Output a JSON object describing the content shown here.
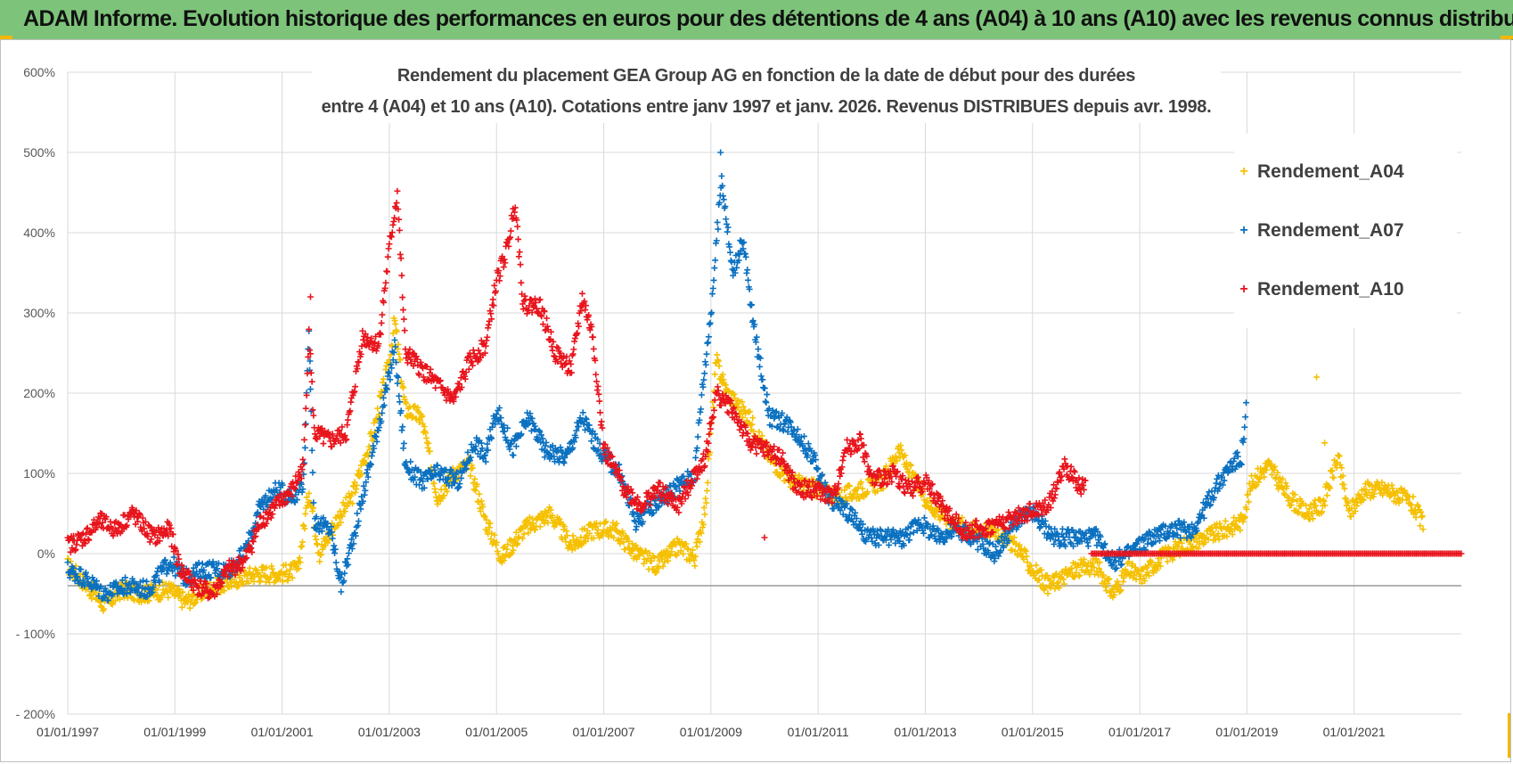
{
  "header": {
    "title": "ADAM Informe. Evolution historique des performances en euros pour des détentions de 4 ans (A04) à 10 ans (A10) avec les revenus connus distribués"
  },
  "chart_data": {
    "type": "scatter",
    "title_line1": "Rendement du placement GEA Group AG en fonction de la date de début pour des durées",
    "title_line2": "entre 4 (A04) et 10 ans (A10).  Cotations entre janv 1997 et janv. 2026. Revenus  DISTRIBUES depuis avr. 1998.",
    "xlim": [
      1997.0,
      2023.0
    ],
    "ylim": [
      -200,
      600
    ],
    "x_ticks": [
      {
        "year": 1997,
        "label": "01/01/1997"
      },
      {
        "year": 1999,
        "label": "01/01/1999"
      },
      {
        "year": 2001,
        "label": "01/01/2001"
      },
      {
        "year": 2003,
        "label": "01/01/2003"
      },
      {
        "year": 2005,
        "label": "01/01/2005"
      },
      {
        "year": 2007,
        "label": "01/01/2007"
      },
      {
        "year": 2009,
        "label": "01/01/2009"
      },
      {
        "year": 2011,
        "label": "01/01/2011"
      },
      {
        "year": 2013,
        "label": "01/01/2013"
      },
      {
        "year": 2015,
        "label": "01/01/2015"
      },
      {
        "year": 2017,
        "label": "01/01/2017"
      },
      {
        "year": 2019,
        "label": "01/01/2019"
      },
      {
        "year": 2021,
        "label": "01/01/2021"
      }
    ],
    "y_ticks": [
      {
        "value": 600,
        "label": "600%"
      },
      {
        "value": 500,
        "label": "500%"
      },
      {
        "value": 400,
        "label": "400%"
      },
      {
        "value": 300,
        "label": "300%"
      },
      {
        "value": 200,
        "label": "200%"
      },
      {
        "value": 100,
        "label": "100%"
      },
      {
        "value": 0,
        "label": "0%"
      },
      {
        "value": -100,
        "label": "- 100%"
      },
      {
        "value": -200,
        "label": "- 200%"
      }
    ],
    "reference_line": -40,
    "legend_position": "top-right",
    "series": [
      {
        "name": "Rendement_A04",
        "color": "#f5c000",
        "anchors": [
          [
            1997.0,
            -15
          ],
          [
            1997.3,
            -35
          ],
          [
            1997.7,
            -65
          ],
          [
            1998.0,
            -45
          ],
          [
            1998.4,
            -50
          ],
          [
            1998.9,
            -45
          ],
          [
            1999.2,
            -60
          ],
          [
            1999.6,
            -45
          ],
          [
            2000.0,
            -35
          ],
          [
            2000.5,
            -25
          ],
          [
            2001.0,
            -25
          ],
          [
            2001.3,
            -20
          ],
          [
            2001.5,
            80
          ],
          [
            2001.7,
            0
          ],
          [
            2002.0,
            40
          ],
          [
            2002.3,
            70
          ],
          [
            2002.7,
            150
          ],
          [
            2003.0,
            240
          ],
          [
            2003.1,
            290
          ],
          [
            2003.3,
            180
          ],
          [
            2003.6,
            170
          ],
          [
            2003.9,
            70
          ],
          [
            2004.2,
            100
          ],
          [
            2004.5,
            110
          ],
          [
            2004.8,
            40
          ],
          [
            2005.1,
            -5
          ],
          [
            2005.5,
            30
          ],
          [
            2006.0,
            50
          ],
          [
            2006.4,
            10
          ],
          [
            2006.8,
            30
          ],
          [
            2007.2,
            30
          ],
          [
            2007.6,
            0
          ],
          [
            2008.0,
            -15
          ],
          [
            2008.4,
            10
          ],
          [
            2008.7,
            -5
          ],
          [
            2008.9,
            60
          ],
          [
            2009.1,
            240
          ],
          [
            2009.3,
            200
          ],
          [
            2009.7,
            170
          ],
          [
            2010.1,
            120
          ],
          [
            2010.5,
            90
          ],
          [
            2011.0,
            80
          ],
          [
            2011.4,
            70
          ],
          [
            2011.8,
            80
          ],
          [
            2012.2,
            90
          ],
          [
            2012.5,
            130
          ],
          [
            2012.8,
            90
          ],
          [
            2013.1,
            60
          ],
          [
            2013.5,
            40
          ],
          [
            2013.9,
            30
          ],
          [
            2014.3,
            30
          ],
          [
            2014.7,
            10
          ],
          [
            2015.0,
            -20
          ],
          [
            2015.3,
            -40
          ],
          [
            2015.8,
            -20
          ],
          [
            2016.2,
            -15
          ],
          [
            2016.5,
            -50
          ],
          [
            2016.8,
            -20
          ],
          [
            2017.0,
            -30
          ],
          [
            2017.4,
            -5
          ],
          [
            2017.8,
            10
          ],
          [
            2018.2,
            20
          ],
          [
            2018.6,
            30
          ],
          [
            2018.9,
            40
          ],
          [
            2019.1,
            90
          ],
          [
            2019.4,
            110
          ],
          [
            2019.8,
            70
          ],
          [
            2020.1,
            50
          ],
          [
            2020.4,
            60
          ],
          [
            2020.7,
            120
          ],
          [
            2020.9,
            50
          ],
          [
            2021.2,
            80
          ],
          [
            2021.6,
            80
          ],
          [
            2021.9,
            70
          ],
          [
            2022.1,
            60
          ],
          [
            2022.3,
            35
          ]
        ],
        "outliers": [
          [
            2020.3,
            220
          ],
          [
            2020.45,
            138
          ]
        ]
      },
      {
        "name": "Rendement_A07",
        "color": "#0a70c0",
        "anchors": [
          [
            1997.0,
            -20
          ],
          [
            1997.3,
            -30
          ],
          [
            1997.7,
            -50
          ],
          [
            1998.1,
            -40
          ],
          [
            1998.5,
            -45
          ],
          [
            1998.9,
            -10
          ],
          [
            1999.2,
            -30
          ],
          [
            1999.5,
            -20
          ],
          [
            2000.0,
            -20
          ],
          [
            2000.3,
            0
          ],
          [
            2000.6,
            60
          ],
          [
            2000.9,
            80
          ],
          [
            2001.2,
            70
          ],
          [
            2001.4,
            90
          ],
          [
            2001.5,
            270
          ],
          [
            2001.6,
            40
          ],
          [
            2001.9,
            30
          ],
          [
            2002.1,
            -40
          ],
          [
            2002.4,
            40
          ],
          [
            2002.7,
            130
          ],
          [
            2003.0,
            220
          ],
          [
            2003.1,
            260
          ],
          [
            2003.3,
            110
          ],
          [
            2003.6,
            90
          ],
          [
            2003.9,
            100
          ],
          [
            2004.3,
            90
          ],
          [
            2004.6,
            140
          ],
          [
            2004.8,
            120
          ],
          [
            2005.0,
            180
          ],
          [
            2005.3,
            130
          ],
          [
            2005.6,
            170
          ],
          [
            2005.9,
            130
          ],
          [
            2006.3,
            120
          ],
          [
            2006.6,
            170
          ],
          [
            2006.9,
            130
          ],
          [
            2007.3,
            100
          ],
          [
            2007.6,
            40
          ],
          [
            2007.9,
            60
          ],
          [
            2008.3,
            80
          ],
          [
            2008.7,
            100
          ],
          [
            2008.8,
            180
          ],
          [
            2009.0,
            300
          ],
          [
            2009.2,
            470
          ],
          [
            2009.4,
            350
          ],
          [
            2009.6,
            390
          ],
          [
            2009.8,
            280
          ],
          [
            2010.1,
            170
          ],
          [
            2010.5,
            160
          ],
          [
            2010.9,
            120
          ],
          [
            2011.2,
            70
          ],
          [
            2011.6,
            50
          ],
          [
            2011.9,
            20
          ],
          [
            2012.2,
            20
          ],
          [
            2012.6,
            20
          ],
          [
            2012.9,
            40
          ],
          [
            2013.2,
            20
          ],
          [
            2013.6,
            30
          ],
          [
            2013.9,
            20
          ],
          [
            2014.3,
            0
          ],
          [
            2014.7,
            40
          ],
          [
            2015.0,
            50
          ],
          [
            2015.4,
            20
          ],
          [
            2015.8,
            20
          ],
          [
            2016.2,
            20
          ],
          [
            2016.5,
            -10
          ],
          [
            2016.8,
            0
          ],
          [
            2017.2,
            20
          ],
          [
            2017.6,
            30
          ],
          [
            2018.0,
            30
          ],
          [
            2018.4,
            80
          ],
          [
            2018.7,
            110
          ],
          [
            2018.9,
            120
          ],
          [
            2019.0,
            190
          ]
        ],
        "outliers": [
          [
            2001.52,
            240
          ],
          [
            2009.18,
            500
          ]
        ]
      },
      {
        "name": "Rendement_A10",
        "color": "#e8141c",
        "anchors": [
          [
            1997.0,
            10
          ],
          [
            1997.3,
            20
          ],
          [
            1997.6,
            40
          ],
          [
            1997.9,
            30
          ],
          [
            1998.2,
            50
          ],
          [
            1998.6,
            20
          ],
          [
            1998.9,
            30
          ],
          [
            1999.1,
            -20
          ],
          [
            1999.4,
            -40
          ],
          [
            1999.7,
            -50
          ],
          [
            2000.0,
            -20
          ],
          [
            2000.3,
            -10
          ],
          [
            2000.6,
            40
          ],
          [
            2000.9,
            60
          ],
          [
            2001.2,
            80
          ],
          [
            2001.4,
            110
          ],
          [
            2001.5,
            280
          ],
          [
            2001.6,
            150
          ],
          [
            2001.9,
            140
          ],
          [
            2002.2,
            150
          ],
          [
            2002.5,
            270
          ],
          [
            2002.8,
            260
          ],
          [
            2003.0,
            380
          ],
          [
            2003.15,
            450
          ],
          [
            2003.3,
            250
          ],
          [
            2003.6,
            230
          ],
          [
            2003.9,
            210
          ],
          [
            2004.2,
            190
          ],
          [
            2004.5,
            240
          ],
          [
            2004.8,
            260
          ],
          [
            2005.0,
            340
          ],
          [
            2005.2,
            380
          ],
          [
            2005.35,
            440
          ],
          [
            2005.5,
            310
          ],
          [
            2005.8,
            310
          ],
          [
            2006.1,
            250
          ],
          [
            2006.4,
            230
          ],
          [
            2006.6,
            320
          ],
          [
            2006.8,
            270
          ],
          [
            2007.0,
            130
          ],
          [
            2007.4,
            80
          ],
          [
            2007.7,
            60
          ],
          [
            2008.0,
            80
          ],
          [
            2008.4,
            60
          ],
          [
            2008.7,
            100
          ],
          [
            2008.9,
            120
          ],
          [
            2009.1,
            200
          ],
          [
            2009.4,
            180
          ],
          [
            2009.7,
            140
          ],
          [
            2010.0,
            130
          ],
          [
            2010.3,
            120
          ],
          [
            2010.6,
            80
          ],
          [
            2010.9,
            80
          ],
          [
            2011.3,
            70
          ],
          [
            2011.5,
            130
          ],
          [
            2011.8,
            140
          ],
          [
            2012.0,
            90
          ],
          [
            2012.4,
            100
          ],
          [
            2012.7,
            80
          ],
          [
            2013.0,
            90
          ],
          [
            2013.4,
            50
          ],
          [
            2013.7,
            30
          ],
          [
            2014.1,
            30
          ],
          [
            2014.5,
            40
          ],
          [
            2014.9,
            50
          ],
          [
            2015.3,
            60
          ],
          [
            2015.6,
            110
          ],
          [
            2015.8,
            90
          ],
          [
            2016.0,
            80
          ]
        ],
        "outliers": [
          [
            2001.53,
            320
          ],
          [
            2010.0,
            20
          ]
        ],
        "flat_segment": {
          "x_start": 2016.1,
          "x_end": 2023.0,
          "value": 0
        }
      }
    ]
  }
}
